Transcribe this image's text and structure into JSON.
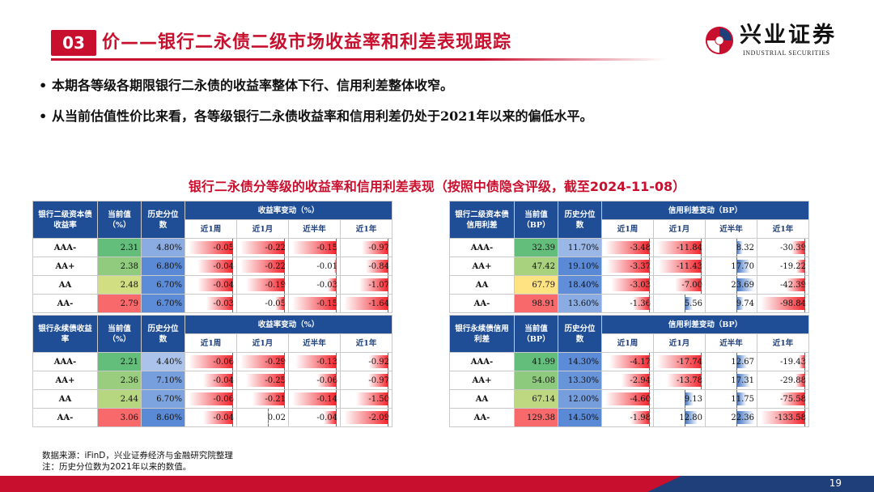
{
  "header": {
    "section_no": "03",
    "title": "价——银行二永债二级市场收益率和利差表现跟踪",
    "logo_cn": "兴业证券",
    "logo_en": "INDUSTRIAL SECURITIES"
  },
  "bullets": [
    "本期各等级各期限银行二永债的收益率整体下行、信用利差整体收窄。",
    "从当前估值性价比来看，各等级银行二永债收益率和信用利差仍处于2021年以来的偏低水平。"
  ],
  "caption": "银行二永债分等级的收益率和信用利差表现（按照中债隐含评级，截至2024-11-08）",
  "tables": {
    "tier2_yield": {
      "head1": "银行二级资本债收益率",
      "head2": "当前值（%）",
      "head3": "历史分位数",
      "group": "收益率变动（%）",
      "periods": [
        "近1周",
        "近1月",
        "近半年",
        "近1年"
      ],
      "rows": [
        {
          "rating": "AAA-",
          "cur": "2.31",
          "pct": "4.80%",
          "chg": [
            "-0.05",
            "-0.22",
            "-0.15",
            "-0.97"
          ]
        },
        {
          "rating": "AA+",
          "cur": "2.38",
          "pct": "6.80%",
          "chg": [
            "-0.04",
            "-0.22",
            "-0.01",
            "-0.84"
          ]
        },
        {
          "rating": "AA",
          "cur": "2.48",
          "pct": "6.70%",
          "chg": [
            "-0.04",
            "-0.19",
            "-0.03",
            "-1.07"
          ]
        },
        {
          "rating": "AA-",
          "cur": "2.79",
          "pct": "6.70%",
          "chg": [
            "-0.03",
            "-0.05",
            "-0.15",
            "-1.64"
          ]
        }
      ]
    },
    "tier2_spread": {
      "head1": "银行二级资本债信用利差",
      "head2": "当前值（BP）",
      "head3": "历史分位数",
      "group": "信用利差变动（BP）",
      "periods": [
        "近1周",
        "近1月",
        "近半年",
        "近1年"
      ],
      "rows": [
        {
          "rating": "AAA-",
          "cur": "32.39",
          "pct": "11.70%",
          "chg": [
            "-3.48",
            "-11.84",
            "8.32",
            "-30.39"
          ]
        },
        {
          "rating": "AA+",
          "cur": "47.42",
          "pct": "19.10%",
          "chg": [
            "-3.37",
            "-11.43",
            "17.70",
            "-19.22"
          ]
        },
        {
          "rating": "AA",
          "cur": "67.79",
          "pct": "18.40%",
          "chg": [
            "-3.03",
            "-7.00",
            "23.69",
            "-42.39"
          ]
        },
        {
          "rating": "AA-",
          "cur": "98.91",
          "pct": "13.60%",
          "chg": [
            "-1.36",
            "5.56",
            "9.74",
            "-98.84"
          ]
        }
      ]
    },
    "perp_yield": {
      "head1": "银行永续债收益率",
      "head2": "当前值（%）",
      "head3": "历史分位数",
      "group": "收益率变动（%）",
      "periods": [
        "近1周",
        "近1月",
        "近半年",
        "近1年"
      ],
      "rows": [
        {
          "rating": "AAA-",
          "cur": "2.21",
          "pct": "4.40%",
          "chg": [
            "-0.06",
            "-0.29",
            "-0.13",
            "-0.92"
          ]
        },
        {
          "rating": "AA+",
          "cur": "2.36",
          "pct": "7.10%",
          "chg": [
            "-0.04",
            "-0.25",
            "-0.06",
            "-0.97"
          ]
        },
        {
          "rating": "AA",
          "cur": "2.44",
          "pct": "6.70%",
          "chg": [
            "-0.06",
            "-0.21",
            "-0.14",
            "-1.50"
          ]
        },
        {
          "rating": "AA-",
          "cur": "3.06",
          "pct": "8.60%",
          "chg": [
            "-0.04",
            "0.02",
            "-0.04",
            "-2.09"
          ]
        }
      ]
    },
    "perp_spread": {
      "head1": "银行永续债信用利差",
      "head2": "当前值（BP）",
      "head3": "历史分位数",
      "group": "信用利差变动（BP）",
      "periods": [
        "近1周",
        "近1月",
        "近半年",
        "近1年"
      ],
      "rows": [
        {
          "rating": "AAA-",
          "cur": "41.99",
          "pct": "14.30%",
          "chg": [
            "-4.17",
            "-17.74",
            "12.67",
            "-19.43"
          ]
        },
        {
          "rating": "AA+",
          "cur": "54.08",
          "pct": "13.30%",
          "chg": [
            "-2.94",
            "-13.78",
            "17.31",
            "-29.88"
          ]
        },
        {
          "rating": "AA",
          "cur": "67.14",
          "pct": "12.00%",
          "chg": [
            "-4.60",
            "9.13",
            "11.75",
            "-75.58"
          ]
        },
        {
          "rating": "AA-",
          "cur": "129.38",
          "pct": "14.50%",
          "chg": [
            "-1.98",
            "12.80",
            "22.36",
            "-133.58"
          ]
        }
      ]
    }
  },
  "colors": {
    "brand_red": "#c8102e",
    "header_blue": "#1f4e96",
    "cur_low": "#63be7b",
    "cur_high": "#f8696b",
    "pct_blue": "#5a8ad6"
  },
  "source_note": "数据来源：iFinD，兴业证券经济与金融研究院整理",
  "footnote": "注：历史分位数为2021年以来的数值。",
  "page_number": "19"
}
